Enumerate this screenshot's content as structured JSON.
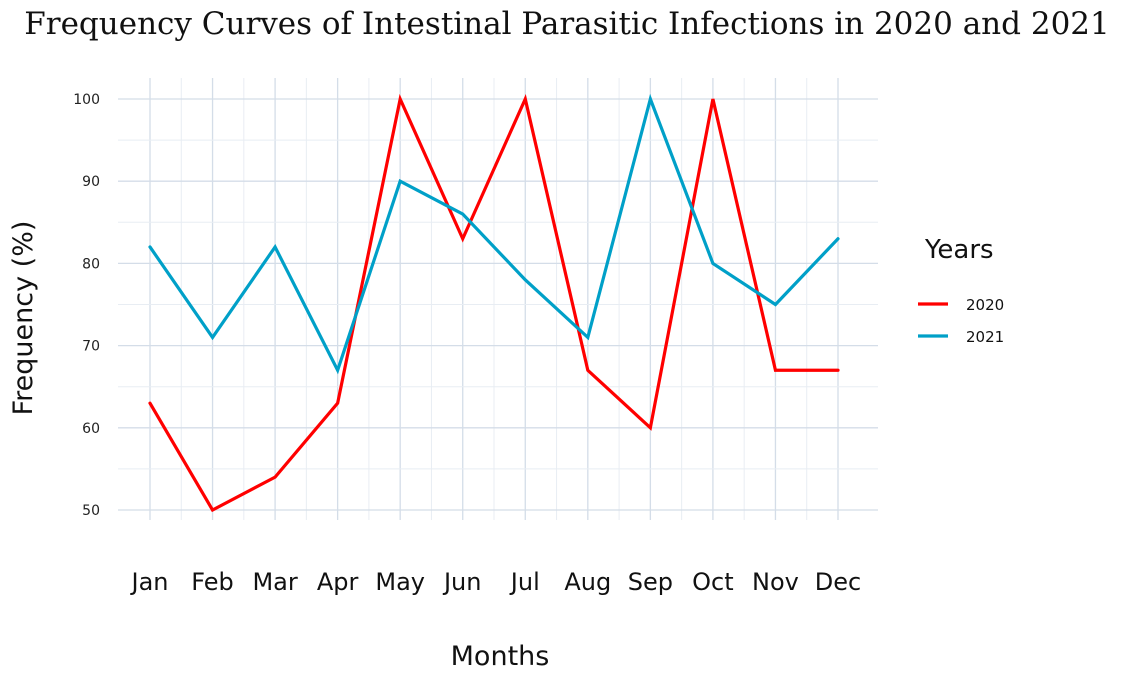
{
  "chart_data": {
    "type": "line",
    "title": "Frequency Curves of Intestinal Parasitic Infections in 2020 and 2021",
    "xlabel": "Months",
    "ylabel": "Frequency (%)",
    "categories": [
      "Jan",
      "Feb",
      "Mar",
      "Apr",
      "May",
      "Jun",
      "Jul",
      "Aug",
      "Sep",
      "Oct",
      "Nov",
      "Dec"
    ],
    "ylim": [
      49,
      100
    ],
    "yticks": [
      50,
      60,
      70,
      80,
      90,
      100
    ],
    "grid": true,
    "legend": {
      "title": "Years",
      "position": "right"
    },
    "series": [
      {
        "name": "2020",
        "color": "#ff0000",
        "values": [
          63,
          50,
          54,
          63,
          100,
          83,
          100,
          67,
          60,
          100,
          67,
          67
        ]
      },
      {
        "name": "2021",
        "color": "#00a0c8",
        "values": [
          82,
          71,
          82,
          67,
          90,
          86,
          78,
          71,
          100,
          80,
          75,
          83
        ]
      }
    ]
  }
}
